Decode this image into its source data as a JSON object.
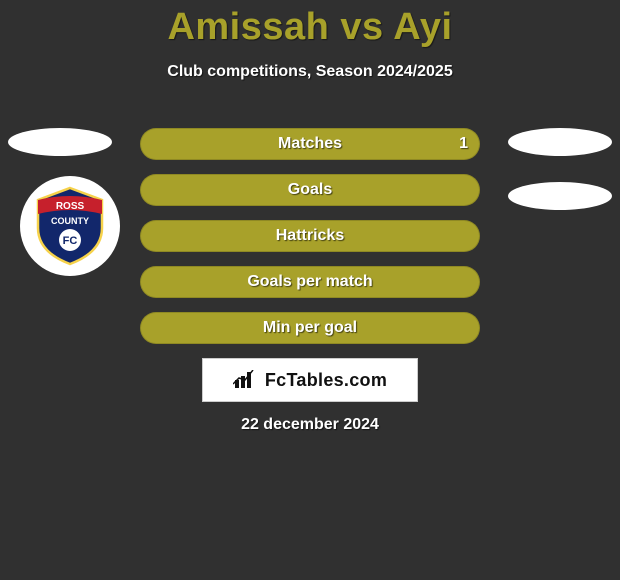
{
  "background_color": "#303030",
  "title": {
    "text": "Amissah vs Ayi",
    "color": "#a8a12a",
    "fontsize": 38,
    "fontweight": 800
  },
  "subtitle": {
    "text": "Club competitions, Season 2024/2025",
    "color": "#ffffff",
    "fontsize": 16
  },
  "stats": {
    "bar_color": "#a8a12a",
    "label_color": "#ffffff",
    "label_fontsize": 16,
    "rows": [
      {
        "label": "Matches",
        "value_left": "",
        "value_right": "1"
      },
      {
        "label": "Goals",
        "value_left": "",
        "value_right": ""
      },
      {
        "label": "Hattricks",
        "value_left": "",
        "value_right": ""
      },
      {
        "label": "Goals per match",
        "value_left": "",
        "value_right": ""
      },
      {
        "label": "Min per goal",
        "value_left": "",
        "value_right": ""
      }
    ]
  },
  "placeholder_ovals": {
    "left": [
      {
        "visible": true
      }
    ],
    "right": [
      {
        "visible": true
      },
      {
        "visible": true
      }
    ],
    "color": "#ffffff"
  },
  "club_badge": {
    "line1": "ROSS",
    "line2": "COUNTY",
    "monogram": "FC",
    "banner_color": "#c6202c",
    "shield_color": "#12276b",
    "border_color": "#000000",
    "shield_border_color": "#f6d24a"
  },
  "brand": {
    "icon_name": "bar-chart-icon",
    "text": "FcTables.com",
    "box_bg": "#ffffff",
    "box_border": "#cccccc",
    "text_color": "#111111",
    "fontsize": 18
  },
  "date": {
    "text": "22 december 2024",
    "color": "#ffffff",
    "fontsize": 16
  }
}
